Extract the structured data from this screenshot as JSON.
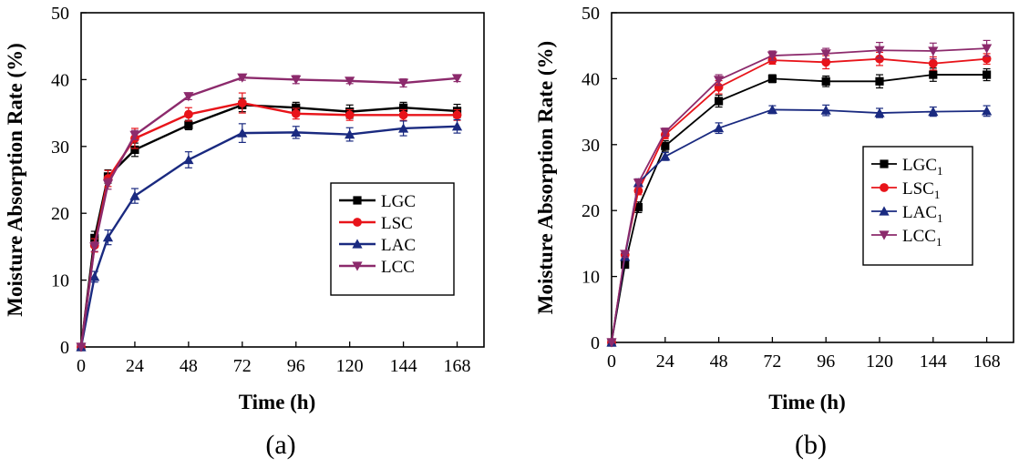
{
  "chart_data": [
    {
      "type": "line",
      "panel_label": "(a)",
      "title": "",
      "xlabel": "Time (h)",
      "ylabel": "Moisture Absorption Rate (%)",
      "xlim": [
        0,
        180
      ],
      "ylim": [
        0,
        50
      ],
      "x_ticks": [
        0,
        24,
        48,
        72,
        96,
        120,
        144,
        168
      ],
      "y_ticks": [
        0,
        10,
        20,
        30,
        40,
        50
      ],
      "grid": false,
      "legend_position": "center-right",
      "x": [
        0,
        6,
        12,
        24,
        48,
        72,
        96,
        120,
        144,
        168
      ],
      "series": [
        {
          "name": "LGC",
          "sub": "",
          "color": "#000000",
          "marker": "square",
          "values": [
            0,
            16.3,
            25.5,
            29.5,
            33.2,
            36.2,
            35.8,
            35.2,
            35.8,
            35.3
          ],
          "errors": [
            0,
            1.0,
            1.0,
            1.0,
            0.7,
            1.0,
            0.8,
            1.0,
            0.8,
            1.0
          ]
        },
        {
          "name": "LSC",
          "sub": "",
          "color": "#e8141a",
          "marker": "circle",
          "values": [
            0,
            15.2,
            25.2,
            31.2,
            34.8,
            36.5,
            34.9,
            34.7,
            34.7,
            34.7
          ],
          "errors": [
            0,
            1.0,
            1.2,
            1.5,
            1.0,
            1.5,
            0.8,
            0.8,
            0.8,
            0.8
          ]
        },
        {
          "name": "LAC",
          "sub": "",
          "color": "#1a2a80",
          "marker": "triangle-up",
          "values": [
            0,
            10.5,
            16.4,
            22.6,
            28.0,
            32.0,
            32.1,
            31.8,
            32.7,
            33.0
          ],
          "errors": [
            0,
            0.8,
            1.1,
            1.1,
            1.2,
            1.4,
            0.9,
            1.0,
            1.1,
            1.0
          ]
        },
        {
          "name": "LCC",
          "sub": "",
          "color": "#8c2a6c",
          "marker": "triangle-down",
          "values": [
            0,
            15.0,
            24.4,
            31.7,
            37.5,
            40.3,
            40.0,
            39.8,
            39.5,
            40.2
          ],
          "errors": [
            0,
            0.7,
            0.8,
            0.7,
            0.5,
            0.4,
            0.6,
            0.4,
            0.6,
            0.5
          ]
        }
      ]
    },
    {
      "type": "line",
      "panel_label": "(b)",
      "title": "",
      "xlabel": "Time (h)",
      "ylabel": "Moisture Absorption Rate (%)",
      "xlim": [
        0,
        180
      ],
      "ylim": [
        0,
        50
      ],
      "x_ticks": [
        0,
        24,
        48,
        72,
        96,
        120,
        144,
        168
      ],
      "y_ticks": [
        0,
        10,
        20,
        30,
        40,
        50
      ],
      "grid": false,
      "legend_position": "center-right",
      "x": [
        0,
        6,
        12,
        24,
        48,
        72,
        96,
        120,
        144,
        168
      ],
      "series": [
        {
          "name": "LGC",
          "sub": "1",
          "color": "#000000",
          "marker": "square",
          "values": [
            0,
            11.8,
            20.5,
            29.8,
            36.6,
            40.0,
            39.6,
            39.6,
            40.6,
            40.6
          ],
          "errors": [
            0,
            0.5,
            0.8,
            0.8,
            0.9,
            0.6,
            0.8,
            1.0,
            1.0,
            0.9
          ]
        },
        {
          "name": "LSC",
          "sub": "1",
          "color": "#e8141a",
          "marker": "circle",
          "values": [
            0,
            13.3,
            23.0,
            31.5,
            38.7,
            42.8,
            42.5,
            43.0,
            42.3,
            43.0
          ],
          "errors": [
            0,
            0.5,
            0.6,
            0.6,
            1.0,
            0.6,
            1.0,
            1.0,
            1.0,
            0.8
          ]
        },
        {
          "name": "LAC",
          "sub": "1",
          "color": "#1a2a80",
          "marker": "triangle-up",
          "values": [
            0,
            13.0,
            24.2,
            28.2,
            32.5,
            35.3,
            35.2,
            34.8,
            35.0,
            35.1
          ],
          "errors": [
            0,
            0.5,
            0.6,
            0.6,
            0.8,
            0.6,
            0.8,
            0.7,
            0.7,
            0.8
          ]
        },
        {
          "name": "LCC",
          "sub": "1",
          "color": "#8c2a6c",
          "marker": "triangle-down",
          "values": [
            0,
            13.4,
            24.2,
            31.9,
            39.8,
            43.5,
            43.8,
            44.3,
            44.2,
            44.6
          ],
          "errors": [
            0,
            0.5,
            0.6,
            0.6,
            0.8,
            0.7,
            0.8,
            1.2,
            1.2,
            1.2
          ]
        }
      ]
    }
  ]
}
